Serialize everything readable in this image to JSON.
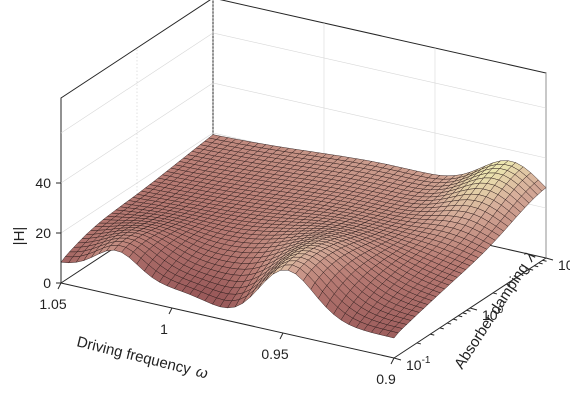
{
  "chart_data": {
    "type": "surface",
    "zlabel": "|H|",
    "xlabel": "Driving frequency",
    "xlabel_symbol": "ω",
    "ylabel": "Absorber damping",
    "ylabel_symbol": "λ",
    "x_ticks": [
      "1.05",
      "1",
      "0.95",
      "0.9"
    ],
    "x_range": [
      0.9,
      1.05
    ],
    "y_ticks": [
      {
        "base": "10",
        "exp": "-1"
      },
      {
        "base": "10",
        "exp": "0"
      },
      {
        "base": "10",
        "exp": "1"
      }
    ],
    "y_range": [
      0.1,
      10
    ],
    "y_scale": "log",
    "z_ticks": [
      "0",
      "20",
      "40"
    ],
    "z_range": [
      0,
      40
    ],
    "peaks": [
      {
        "omega": 1.025,
        "lambda": 0.1,
        "height": 16
      },
      {
        "omega": 0.95,
        "lambda": 0.1,
        "height": 33
      },
      {
        "omega": 0.915,
        "lambda": 10,
        "height": 33
      }
    ],
    "colormap": [
      "#9a5a5a",
      "#b87c74",
      "#d6ad9a",
      "#ece6b0"
    ],
    "grid": true
  }
}
